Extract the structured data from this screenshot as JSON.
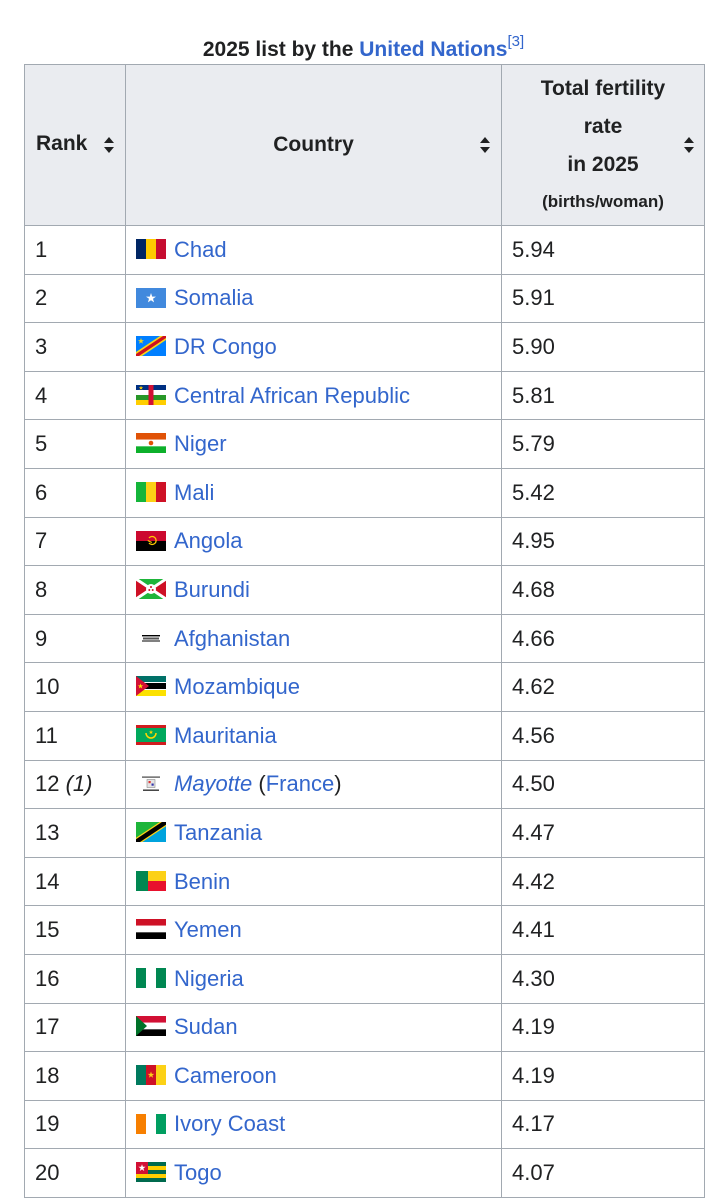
{
  "caption": {
    "prefix": "2025 list by the ",
    "link": "United Nations",
    "ref": "[3]"
  },
  "headers": {
    "rank": "Rank",
    "country": "Country",
    "rate_line1": "Total fertility",
    "rate_line2": "rate",
    "rate_line3": "in 2025",
    "rate_unit": "(births/woman)"
  },
  "rows": [
    {
      "rank": "1",
      "country": "Chad",
      "rate": "5.94",
      "flag": "flag-chad-icon"
    },
    {
      "rank": "2",
      "country": "Somalia",
      "rate": "5.91",
      "flag": "flag-somalia-icon"
    },
    {
      "rank": "3",
      "country": "DR Congo",
      "rate": "5.90",
      "flag": "flag-dr-congo-icon"
    },
    {
      "rank": "4",
      "country": "Central African Republic",
      "rate": "5.81",
      "flag": "flag-central-african-republic-icon"
    },
    {
      "rank": "5",
      "country": "Niger",
      "rate": "5.79",
      "flag": "flag-niger-icon"
    },
    {
      "rank": "6",
      "country": "Mali",
      "rate": "5.42",
      "flag": "flag-mali-icon"
    },
    {
      "rank": "7",
      "country": "Angola",
      "rate": "4.95",
      "flag": "flag-angola-icon"
    },
    {
      "rank": "8",
      "country": "Burundi",
      "rate": "4.68",
      "flag": "flag-burundi-icon"
    },
    {
      "rank": "9",
      "country": "Afghanistan",
      "rate": "4.66",
      "flag": "flag-afghanistan-icon"
    },
    {
      "rank": "10",
      "country": "Mozambique",
      "rate": "4.62",
      "flag": "flag-mozambique-icon"
    },
    {
      "rank": "11",
      "country": "Mauritania",
      "rate": "4.56",
      "flag": "flag-mauritania-icon"
    },
    {
      "rank": "12",
      "rank_note": "(1)",
      "country": "Mayotte",
      "country_suffix_open": " (",
      "country_parent": "France",
      "country_suffix_close": ")",
      "rate": "4.50",
      "flag": "flag-mayotte-icon"
    },
    {
      "rank": "13",
      "country": "Tanzania",
      "rate": "4.47",
      "flag": "flag-tanzania-icon"
    },
    {
      "rank": "14",
      "country": "Benin",
      "rate": "4.42",
      "flag": "flag-benin-icon"
    },
    {
      "rank": "15",
      "country": "Yemen",
      "rate": "4.41",
      "flag": "flag-yemen-icon"
    },
    {
      "rank": "16",
      "country": "Nigeria",
      "rate": "4.30",
      "flag": "flag-nigeria-icon"
    },
    {
      "rank": "17",
      "country": "Sudan",
      "rate": "4.19",
      "flag": "flag-sudan-icon"
    },
    {
      "rank": "18",
      "country": "Cameroon",
      "rate": "4.19",
      "flag": "flag-cameroon-icon"
    },
    {
      "rank": "19",
      "country": "Ivory Coast",
      "rate": "4.17",
      "flag": "flag-ivory-coast-icon"
    },
    {
      "rank": "20",
      "country": "Togo",
      "rate": "4.07",
      "flag": "flag-togo-icon"
    }
  ]
}
